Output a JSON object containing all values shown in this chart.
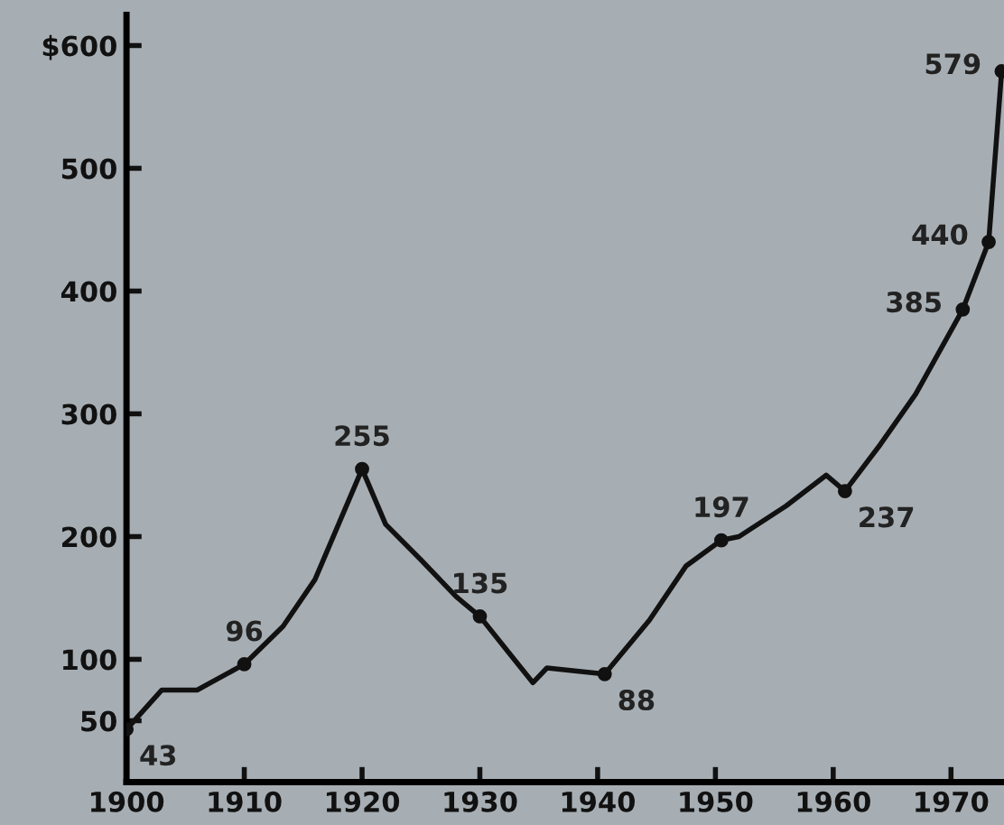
{
  "chart_data": {
    "type": "line",
    "xlim": [
      1900,
      1974.5
    ],
    "ylim": [
      0,
      625
    ],
    "xticks": [
      1900,
      1910,
      1920,
      1930,
      1940,
      1950,
      1960,
      1970
    ],
    "yticks": [
      50,
      100,
      200,
      300,
      400,
      500,
      {
        "value": 600,
        "label": "$600"
      }
    ],
    "grid": false,
    "legend": false,
    "series": [
      {
        "color": "#111111",
        "marker": "none",
        "x": [
          1900,
          1903,
          1906,
          1910,
          1913.3,
          1916,
          1918,
          1920,
          1922,
          1925,
          1928,
          1930,
          1932.5,
          1934.5,
          1935.7,
          1940.6,
          1944.4,
          1947.5,
          1950.5,
          1952,
          1956,
          1959.4,
          1961,
          1964,
          1967,
          1971,
          1972.4,
          1973.2,
          1974.3
        ],
        "values": [
          43,
          75,
          75,
          96,
          127,
          165,
          210,
          255,
          210,
          181,
          151,
          135,
          105,
          81,
          93,
          88,
          132,
          176,
          197,
          200,
          225,
          250,
          237,
          275,
          316,
          385,
          420,
          440,
          579
        ]
      },
      {
        "type": "scatter",
        "color": "#111111",
        "marker": "circle",
        "data_labels": true,
        "x": [
          1900,
          1910,
          1920,
          1930,
          1940.6,
          1950.5,
          1961,
          1971,
          1973.2,
          1974.3
        ],
        "values": [
          43,
          96,
          255,
          135,
          88,
          197,
          237,
          385,
          440,
          579
        ]
      }
    ]
  }
}
